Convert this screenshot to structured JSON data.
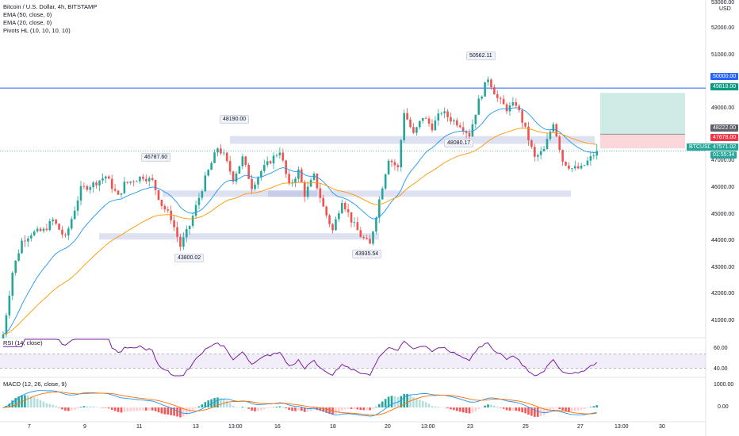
{
  "legend": {
    "symbol": "Bitcoin / U.S. Dollar, 4h, BITSTAMP",
    "ema50": "EMA (50, close, 0)",
    "ema20": "EMA (20, close, 0)",
    "pivots": "Pivots HL (10, 10, 10, 10)"
  },
  "pivot_labels": [
    "46787.60",
    "48190.00",
    "43800.02",
    "43935.54",
    "50562.11",
    "48080.17"
  ],
  "price_axis": {
    "currency": "USD",
    "ticks": [
      "53000.00",
      "52000.00",
      "51000.00",
      "50000.00",
      "49000.00",
      "48000.00",
      "47000.00",
      "46000.00",
      "45000.00",
      "44000.00",
      "43000.00",
      "42000.00",
      "41000.00"
    ]
  },
  "price_tags": {
    "line": "50000.00",
    "target": "49818.00",
    "entry": "48222.00",
    "stop": "47678.00",
    "symbol": "BTCUSD",
    "last": "47571.02",
    "countdown": "01:55:34"
  },
  "rsi": {
    "label": "RSI (14, close)",
    "ticks": [
      "60.00",
      "40.00"
    ]
  },
  "macd": {
    "label": "MACD (12, 26, close, 9)",
    "ticks": [
      "1000.00",
      "0.00"
    ]
  },
  "time_axis": [
    "7",
    "9",
    "11",
    "13",
    "13:00",
    "16",
    "18",
    "20",
    "13:00",
    "23",
    "25",
    "27",
    "13:00",
    "30"
  ],
  "colors": {
    "up": "#26a69a",
    "down": "#ef5350",
    "ema20": "#2196f3",
    "ema50": "#ff9800",
    "rsi": "#7b1fa2",
    "zone": "#9fa8da",
    "hline": "#2962ff"
  },
  "chart_data": {
    "type": "candlestick",
    "title": "Bitcoin / U.S. Dollar, 4h, BITSTAMP",
    "ylim": [
      40400,
      53400
    ],
    "hline": 50000,
    "position": {
      "entry": 48222,
      "target": 49818,
      "stop": 47678
    },
    "zones": [
      [
        47850,
        48150
      ],
      [
        45880,
        46050
      ],
      [
        44300,
        44400
      ],
      [
        45850,
        46050
      ]
    ],
    "close_path": [
      [
        0,
        40500
      ],
      [
        3,
        42900
      ],
      [
        6,
        44100
      ],
      [
        9,
        44400
      ],
      [
        13,
        44500
      ],
      [
        16,
        44900
      ],
      [
        20,
        44200
      ],
      [
        25,
        46100
      ],
      [
        29,
        46300
      ],
      [
        33,
        46600
      ],
      [
        37,
        45800
      ],
      [
        39,
        46300
      ],
      [
        45,
        46600
      ],
      [
        48,
        46400
      ],
      [
        51,
        45500
      ],
      [
        54,
        45000
      ],
      [
        57,
        43900
      ],
      [
        60,
        44700
      ],
      [
        65,
        46500
      ],
      [
        69,
        47700
      ],
      [
        71,
        47400
      ],
      [
        74,
        46500
      ],
      [
        77,
        47300
      ],
      [
        80,
        46200
      ],
      [
        83,
        46800
      ],
      [
        86,
        47200
      ],
      [
        89,
        47600
      ],
      [
        92,
        46200
      ],
      [
        95,
        46800
      ],
      [
        97,
        45900
      ],
      [
        100,
        46600
      ],
      [
        103,
        45400
      ],
      [
        106,
        44500
      ],
      [
        109,
        45700
      ],
      [
        112,
        44900
      ],
      [
        115,
        44300
      ],
      [
        118,
        43950
      ],
      [
        121,
        45700
      ],
      [
        124,
        47300
      ],
      [
        127,
        46900
      ],
      [
        129,
        49100
      ],
      [
        132,
        48200
      ],
      [
        135,
        48900
      ],
      [
        138,
        48500
      ],
      [
        141,
        49100
      ],
      [
        144,
        48800
      ],
      [
        147,
        48600
      ],
      [
        150,
        48200
      ],
      [
        153,
        49500
      ],
      [
        156,
        50400
      ],
      [
        159,
        49600
      ],
      [
        162,
        49200
      ],
      [
        165,
        49400
      ],
      [
        168,
        48400
      ],
      [
        171,
        47300
      ],
      [
        174,
        47600
      ],
      [
        177,
        48700
      ],
      [
        180,
        47200
      ],
      [
        183,
        46900
      ],
      [
        186,
        46900
      ],
      [
        189,
        47300
      ],
      [
        191,
        47570
      ]
    ],
    "rsi_range": [
      30,
      80
    ],
    "macd_range": [
      -800,
      1800
    ]
  }
}
